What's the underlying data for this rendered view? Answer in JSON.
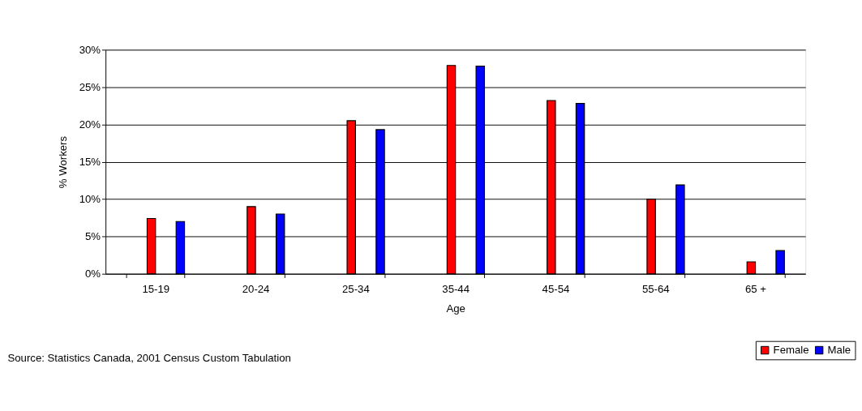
{
  "chart_data": {
    "type": "bar",
    "xlabel": "Age",
    "ylabel": "% Workers",
    "categories": [
      "15-19",
      "20-24",
      "25-34",
      "35-44",
      "45-54",
      "55-64",
      "65 +"
    ],
    "series": [
      {
        "name": "Female",
        "color": "#ff0000",
        "values": [
          7.4,
          9.0,
          20.5,
          27.9,
          23.2,
          10.0,
          1.6
        ]
      },
      {
        "name": "Male",
        "color": "#0000ff",
        "values": [
          7.0,
          8.0,
          19.3,
          27.8,
          22.8,
          11.9,
          3.1
        ]
      }
    ],
    "ylim": [
      0,
      30
    ],
    "yticks": [
      {
        "value": 0,
        "label": "0%"
      },
      {
        "value": 5,
        "label": "5%"
      },
      {
        "value": 10,
        "label": "10%"
      },
      {
        "value": 15,
        "label": "15%"
      },
      {
        "value": 20,
        "label": "20%"
      },
      {
        "value": 25,
        "label": "25%"
      },
      {
        "value": 30,
        "label": "30%"
      }
    ],
    "grid": "y",
    "legend": "bottom right",
    "annotations": [
      "Source: Statistics Canada, 2001 Census Custom Tabulation"
    ]
  }
}
